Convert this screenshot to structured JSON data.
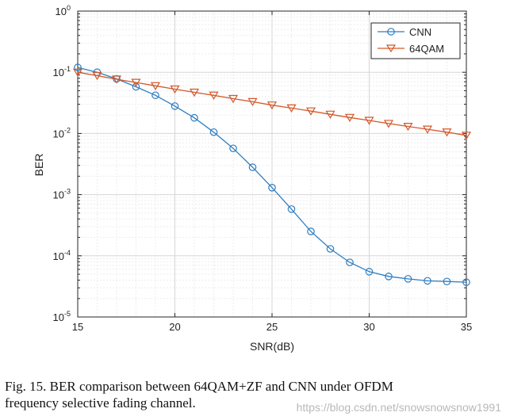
{
  "chart_data": {
    "type": "line",
    "xlabel": "SNR(dB)",
    "ylabel": "BER",
    "yscale": "log",
    "xlim": [
      15,
      35
    ],
    "ylim": [
      1e-05,
      1
    ],
    "xticks": [
      15,
      20,
      25,
      30,
      35
    ],
    "yticks": [
      {
        "value": 1e-05,
        "mantissa": "10",
        "exponent": "-5"
      },
      {
        "value": 0.0001,
        "mantissa": "10",
        "exponent": "-4"
      },
      {
        "value": 0.001,
        "mantissa": "10",
        "exponent": "-3"
      },
      {
        "value": 0.01,
        "mantissa": "10",
        "exponent": "-2"
      },
      {
        "value": 0.1,
        "mantissa": "10",
        "exponent": "-1"
      },
      {
        "value": 1,
        "mantissa": "10",
        "exponent": "0"
      }
    ],
    "grid": true,
    "legend_position": "top-right",
    "x": [
      15,
      16,
      17,
      18,
      19,
      20,
      21,
      22,
      23,
      24,
      25,
      26,
      27,
      28,
      29,
      30,
      31,
      32,
      33,
      34,
      35
    ],
    "series": [
      {
        "name": "CNN",
        "color": "#2e7ec2",
        "marker": "circle",
        "values": [
          0.12,
          0.1,
          0.078,
          0.058,
          0.042,
          0.028,
          0.018,
          0.0105,
          0.0057,
          0.0028,
          0.0013,
          0.00058,
          0.00025,
          0.00013,
          7.8e-05,
          5.5e-05,
          4.6e-05,
          4.2e-05,
          3.9e-05,
          3.8e-05,
          3.7e-05
        ]
      },
      {
        "name": "64QAM",
        "color": "#d4582a",
        "marker": "triangle-down",
        "values": [
          0.1,
          0.088,
          0.077,
          0.068,
          0.06,
          0.053,
          0.047,
          0.042,
          0.037,
          0.033,
          0.029,
          0.026,
          0.0232,
          0.0205,
          0.0182,
          0.0163,
          0.0145,
          0.013,
          0.0117,
          0.0105,
          0.0093
        ]
      }
    ]
  },
  "caption": {
    "line1": "Fig. 15.    BER comparison between 64QAM+ZF and CNN under OFDM",
    "line2": "frequency selective fading channel."
  },
  "watermark": "https://blog.csdn.net/snowsnowsnow1991"
}
